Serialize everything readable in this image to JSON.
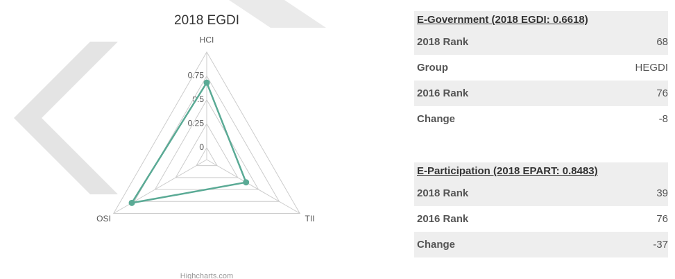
{
  "chart_data": {
    "type": "radar",
    "title": "2018 EGDI",
    "categories": [
      "HCI",
      "TII",
      "OSI"
    ],
    "values": [
      0.68,
      0.35,
      0.78
    ],
    "color": "#5aaa95",
    "ylim": [
      -0.125,
      1
    ],
    "yticks": [
      0,
      0.25,
      0.5,
      0.75
    ],
    "credit": "Highcharts.com"
  },
  "tables": [
    {
      "title": "E-Government (2018 EGDI: 0.6618)",
      "rows": [
        [
          "2018 Rank",
          "68"
        ],
        [
          "Group",
          "HEGDI"
        ],
        [
          "2016 Rank",
          "76"
        ],
        [
          "Change",
          "-8"
        ]
      ]
    },
    {
      "title": "E-Participation (2018 EPART: 0.8483)",
      "rows": [
        [
          "2018 Rank",
          "39"
        ],
        [
          "2016 Rank",
          "76"
        ],
        [
          "Change",
          "-37"
        ]
      ]
    }
  ]
}
